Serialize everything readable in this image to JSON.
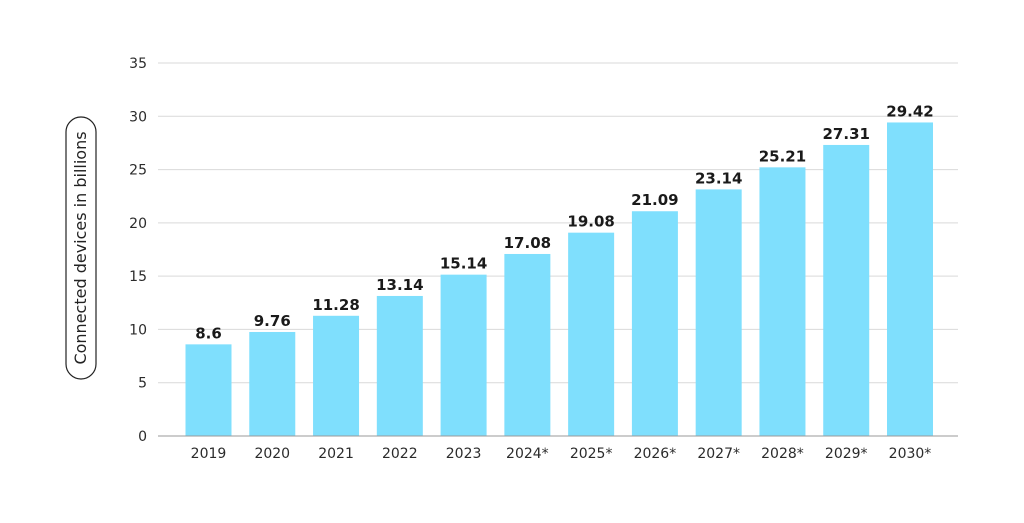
{
  "chart_data": {
    "type": "bar",
    "title": "",
    "xlabel": "",
    "ylabel": "Connected devices in billions",
    "categories": [
      "2019",
      "2020",
      "2021",
      "2022",
      "2023",
      "2024*",
      "2025*",
      "2026*",
      "2027*",
      "2028*",
      "2029*",
      "2030*"
    ],
    "values": [
      8.6,
      9.76,
      11.28,
      13.14,
      15.14,
      17.08,
      19.08,
      21.09,
      23.14,
      25.21,
      27.31,
      29.42
    ],
    "value_labels": [
      "8.6",
      "9.76",
      "11.28",
      "13.14",
      "15.14",
      "17.08",
      "19.08",
      "21.09",
      "23.14",
      "25.21",
      "27.31",
      "29.42"
    ],
    "ylim": [
      0,
      35
    ],
    "yticks": [
      0,
      5,
      10,
      15,
      20,
      25,
      30,
      35
    ],
    "ytick_labels": [
      "0",
      "5",
      "10",
      "15",
      "20",
      "25",
      "30",
      "35"
    ],
    "grid": true,
    "legend": "none",
    "bar_color": "#7fdffd"
  }
}
